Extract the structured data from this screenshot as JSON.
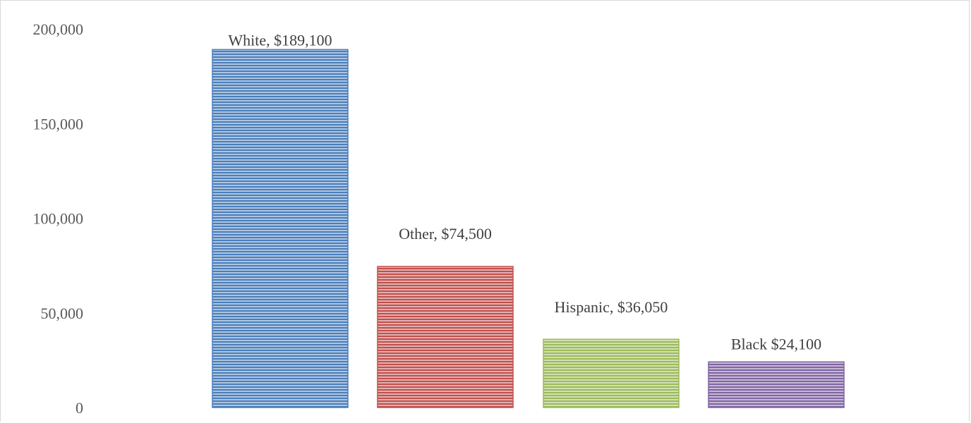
{
  "chart_data": {
    "type": "bar",
    "categories": [
      "White",
      "Other",
      "Hispanic",
      "Black"
    ],
    "values": [
      189100,
      74500,
      36050,
      24100
    ],
    "data_labels": [
      "White, $189,100",
      "Other, $74,500",
      "Hispanic, $36,050",
      "Black $24,100"
    ],
    "y_ticks": [
      0,
      50000,
      100000,
      150000,
      200000
    ],
    "y_tick_labels": [
      "0",
      "50,000",
      "100,000",
      "150,000",
      "200,000"
    ],
    "ylim": [
      0,
      200000
    ],
    "grid": false,
    "legend": "none",
    "title": "",
    "xlabel": "",
    "ylabel": "",
    "colors": [
      "#4a7ebb",
      "#c0504d",
      "#9bbb59",
      "#8064a2"
    ]
  }
}
